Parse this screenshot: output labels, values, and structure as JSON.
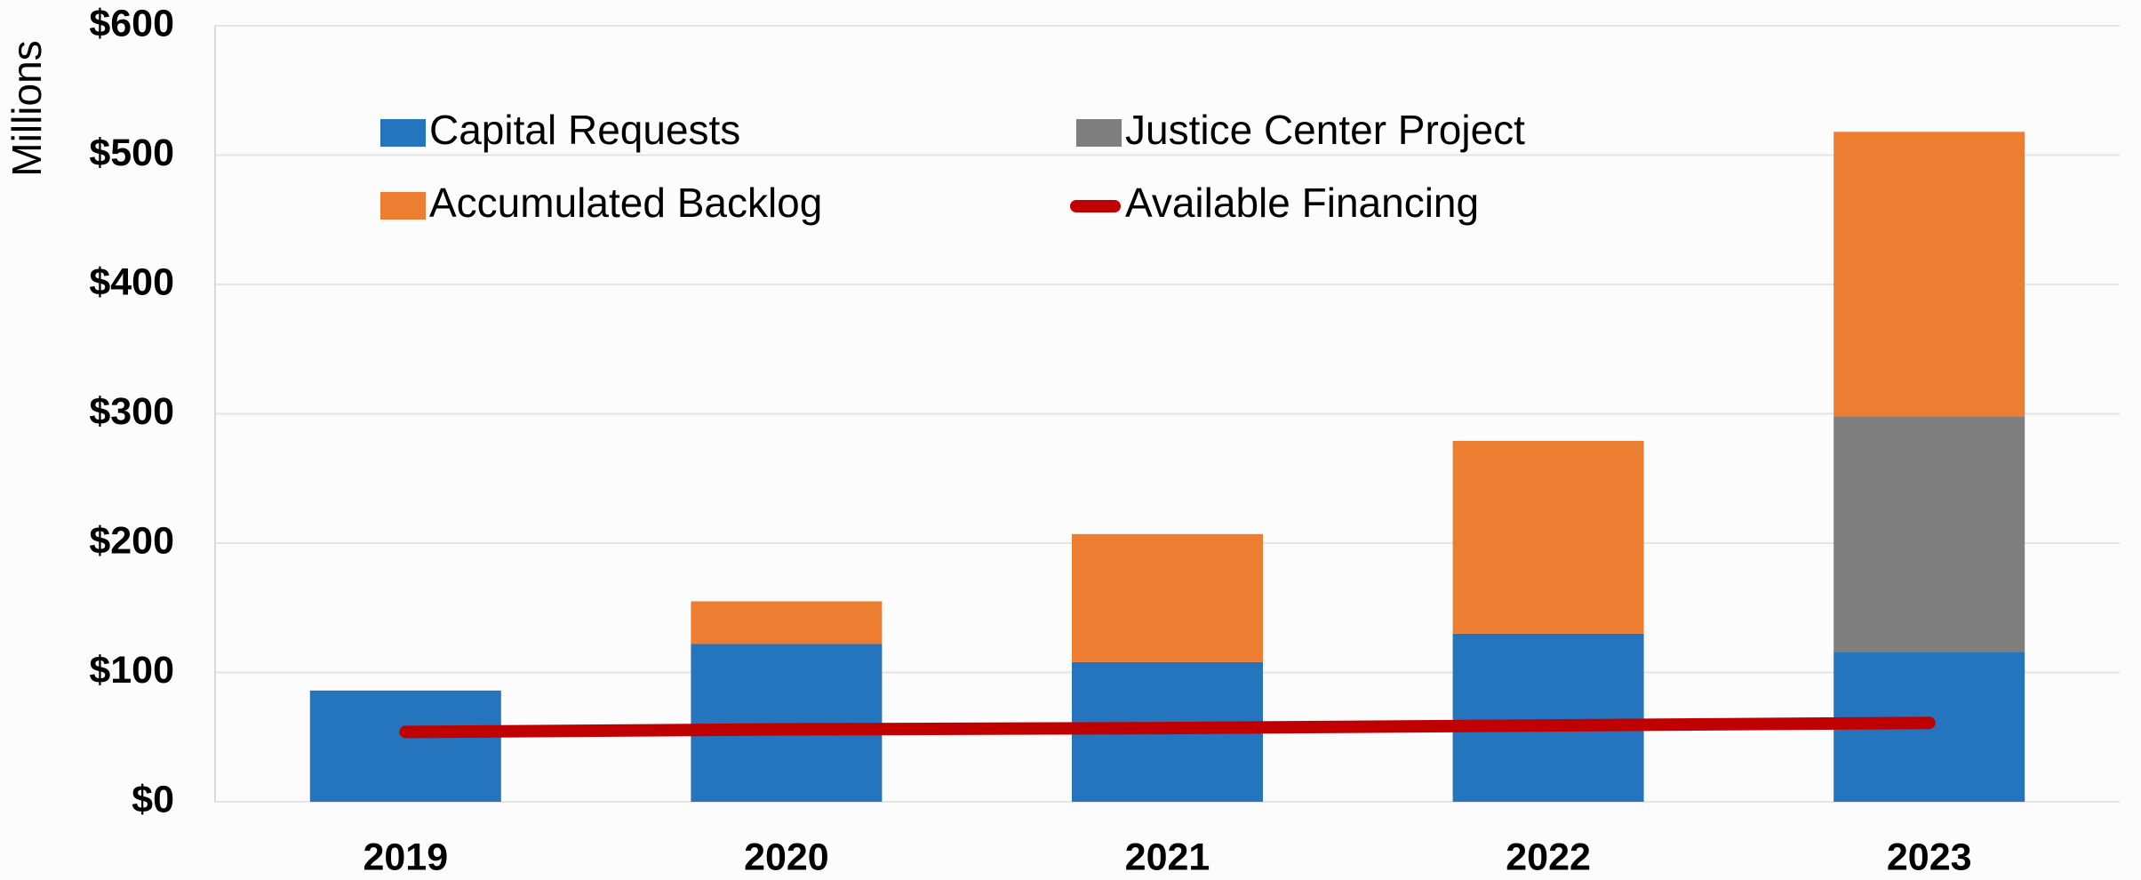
{
  "chart_data": {
    "type": "bar",
    "stacked": true,
    "y_label": "Millions",
    "categories": [
      "2019",
      "2020",
      "2021",
      "2022",
      "2023"
    ],
    "series": [
      {
        "name": "Capital Requests",
        "color": "#2474be",
        "values": [
          86,
          122,
          108,
          130,
          116
        ]
      },
      {
        "name": "Justice Center Project",
        "color": "#7f7f7f",
        "values": [
          0,
          0,
          0,
          0,
          182
        ]
      },
      {
        "name": "Accumulated Backlog",
        "color": "#ed7d31",
        "values": [
          0,
          33,
          99,
          149,
          220
        ]
      },
      {
        "name": "Available Financing",
        "color": "#c00000",
        "type": "line",
        "values": [
          54,
          56,
          57,
          59,
          61
        ]
      }
    ],
    "ylim": [
      0,
      600
    ],
    "yticks": [
      {
        "value": 0,
        "label": "$0"
      },
      {
        "value": 100,
        "label": "$100"
      },
      {
        "value": 200,
        "label": "$200"
      },
      {
        "value": 300,
        "label": "$300"
      },
      {
        "value": 400,
        "label": "$400"
      },
      {
        "value": 500,
        "label": "$500"
      },
      {
        "value": 600,
        "label": "$600"
      }
    ],
    "grid": true
  }
}
